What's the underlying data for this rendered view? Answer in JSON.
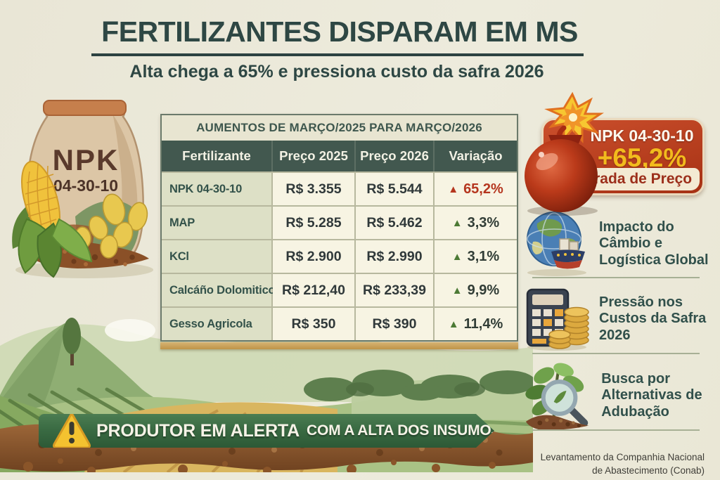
{
  "page": {
    "title": "FERTILIZANTES DISPARAM EM MS",
    "subtitle": "Alta chega a 65% e pressiona custo da safra 2026",
    "source_line1": "Levantamento da Companhia Nacional",
    "source_line2": "de Abastecimento (Conab)"
  },
  "bag": {
    "label_top": "NPK",
    "label_bottom": "04-30-10"
  },
  "table": {
    "title": "AUMENTOS DE MARÇO/2025 PARA MARÇO/2026",
    "columns": [
      "Fertilizante",
      "Preço 2025",
      "Preço 2026",
      "Variação"
    ],
    "up_marker": "▲",
    "rows": [
      {
        "name": "NPK 04-30-10",
        "price_2025": "R$ 3.355",
        "price_2026": "R$ 5.544",
        "variation": "65,2%",
        "direction": "up",
        "highlight": true
      },
      {
        "name": "MAP",
        "price_2025": "R$ 5.285",
        "price_2026": "R$ 5.462",
        "variation": "3,3%",
        "direction": "up",
        "highlight": false
      },
      {
        "name": "KCl",
        "price_2025": "R$ 2.900",
        "price_2026": "R$ 2.990",
        "variation": "3,1%",
        "direction": "up",
        "highlight": false
      },
      {
        "name": "Calcáño Dolomitico",
        "price_2025": "R$ 212,40",
        "price_2026": "R$ 233,39",
        "variation": "9,9%",
        "direction": "up",
        "highlight": false
      },
      {
        "name": "Gesso Agricola",
        "price_2025": "R$ 350",
        "price_2026": "R$ 390",
        "variation": "11,4%",
        "direction": "up",
        "highlight": false
      }
    ]
  },
  "chart_data": {
    "type": "table",
    "title": "AUMENTOS DE MARÇO/2025 PARA MARÇO/2026",
    "columns": [
      "Fertilizante",
      "Preço 2025",
      "Preço 2026",
      "Variação"
    ],
    "rows": [
      [
        "NPK 04-30-10",
        3355,
        5544,
        "+65,2%"
      ],
      [
        "MAP",
        5285,
        5462,
        "+3,3%"
      ],
      [
        "KCl",
        2900,
        2990,
        "+3,1%"
      ],
      [
        "Calcáño Dolomitico",
        212.4,
        233.39,
        "+9,9%"
      ],
      [
        "Gesso Agricola",
        350,
        390,
        "+11,4%"
      ]
    ]
  },
  "highlight_card": {
    "product": "NPK 04-30-10",
    "change": "+65,2%",
    "caption": "Disparada de Preço"
  },
  "impacts": [
    {
      "icon": "globe-ship-icon",
      "text": "Impacto do Câmbio e Logística Global"
    },
    {
      "icon": "calculator-coins-icon",
      "text": "Pressão nos Custos da Safra 2026"
    },
    {
      "icon": "plant-magnifier-icon",
      "text": "Busca por Alternativas de Adubação"
    }
  ],
  "alert_banner": {
    "strong": "PRODUTOR EM ALERTA",
    "rest": "COM A ALTA DOS INSUMOS"
  },
  "colors": {
    "background": "#ebe8d9",
    "ink": "#2e4744",
    "table_header_bg": "#42584f",
    "table_title_bg": "#e8e5d1",
    "cell_bg": "#f7f4e3",
    "name_cell_bg": "#dde0c6",
    "grid_line": "#b7b89e",
    "gold_strip": "#c9a258",
    "alert_red": "#b5361f",
    "rise_green": "#4c7a35",
    "card_red": "#b93a1e",
    "card_yellow": "#f2bb1d",
    "card_strip_bg": "#f3ead3",
    "card_strip_text": "#9c2f1b",
    "banner_green": "#3c6f45",
    "banner_text": "#f6f3e7"
  }
}
